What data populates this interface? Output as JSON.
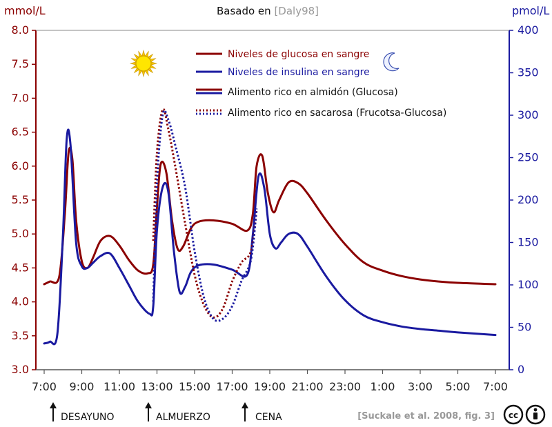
{
  "title": {
    "prefix": "Basado en ",
    "ref": "[Daly98]"
  },
  "credit": "[Suckale et al. 2008, fig. 3]",
  "chart_data": {
    "type": "line",
    "left_axis": {
      "label": "mmol/L",
      "ylim": [
        3.0,
        8.0
      ],
      "ticks": [
        "3.0",
        "3.5",
        "4.0",
        "4.5",
        "5.0",
        "5.5",
        "6.0",
        "6.5",
        "7.0",
        "7.5",
        "8.0"
      ],
      "color": "#8b0000"
    },
    "right_axis": {
      "label": "pmol/L",
      "ylim": [
        0,
        400
      ],
      "ticks": [
        "0",
        "50",
        "100",
        "150",
        "200",
        "250",
        "300",
        "350",
        "400"
      ],
      "color": "#1a1aa0"
    },
    "x_axis": {
      "ticks": [
        "7:00",
        "9:00",
        "11:00",
        "13:00",
        "15:00",
        "17:00",
        "19:00",
        "21:00",
        "23:00",
        "1:00",
        "3:00",
        "5:00",
        "7:00"
      ],
      "range_hours": [
        7,
        31.5
      ]
    },
    "legend": [
      {
        "label": "Niveles de glucosa en sangre",
        "style": "solid-red",
        "color": "#8b0000"
      },
      {
        "label": "Niveles de insulina en sangre",
        "style": "solid-blue",
        "color": "#1a1aa0"
      },
      {
        "label": "Alimento rico en almidón (Glucosa)",
        "style": "solid-pair"
      },
      {
        "label": "Alimento rico en sacarosa (Frucotsa-Glucosa)",
        "style": "dotted-pair"
      }
    ],
    "legend_placement": "top-center",
    "meals": [
      {
        "label": "DESAYUNO",
        "hour": 7.8
      },
      {
        "label": "ALMUERZO",
        "hour": 12.8
      },
      {
        "label": "CENA",
        "hour": 17.8
      }
    ],
    "series": [
      {
        "name": "Niveles de glucosa en sangre",
        "kind": "starch",
        "axis": "left",
        "color": "#8b0000",
        "dash": false,
        "x": [
          7.0,
          7.3,
          7.8,
          8.1,
          8.3,
          8.5,
          8.7,
          9.0,
          9.3,
          9.6,
          10.0,
          10.5,
          11.0,
          11.5,
          12.0,
          12.5,
          12.8,
          13.0,
          13.2,
          13.5,
          13.8,
          14.1,
          14.4,
          14.8,
          15.2,
          16.0,
          17.0,
          17.8,
          18.1,
          18.3,
          18.6,
          18.9,
          19.2,
          19.5,
          20.0,
          20.5,
          21.0,
          22.0,
          23.0,
          24.0,
          25.0,
          26.0,
          27.0,
          28.0,
          29.0,
          31.0
        ],
        "y": [
          4.26,
          4.3,
          4.37,
          5.3,
          6.2,
          6.1,
          5.2,
          4.6,
          4.5,
          4.65,
          4.9,
          4.97,
          4.83,
          4.62,
          4.46,
          4.42,
          4.55,
          5.4,
          6.03,
          5.9,
          5.2,
          4.78,
          4.82,
          5.08,
          5.18,
          5.2,
          5.15,
          5.05,
          5.3,
          6.0,
          6.15,
          5.6,
          5.32,
          5.5,
          5.76,
          5.75,
          5.6,
          5.2,
          4.85,
          4.58,
          4.46,
          4.38,
          4.33,
          4.3,
          4.28,
          4.26
        ]
      },
      {
        "name": "Niveles de insulina en sangre",
        "kind": "starch",
        "axis": "right",
        "color": "#1a1aa0",
        "dash": false,
        "x": [
          7.0,
          7.3,
          7.7,
          8.0,
          8.2,
          8.4,
          8.7,
          9.0,
          9.3,
          9.6,
          10.0,
          10.5,
          11.0,
          11.5,
          12.0,
          12.6,
          12.8,
          13.0,
          13.3,
          13.6,
          13.9,
          14.2,
          14.5,
          14.8,
          15.2,
          16.0,
          17.0,
          17.8,
          18.1,
          18.4,
          18.7,
          19.0,
          19.3,
          19.6,
          20.0,
          20.5,
          21.0,
          22.0,
          23.0,
          24.0,
          25.0,
          26.0,
          27.0,
          28.0,
          29.0,
          31.0
        ],
        "y": [
          31,
          33,
          42,
          160,
          272,
          265,
          150,
          122,
          120,
          126,
          134,
          137,
          120,
          100,
          80,
          66,
          75,
          165,
          215,
          210,
          140,
          92,
          98,
          115,
          123,
          124,
          118,
          112,
          160,
          228,
          215,
          160,
          143,
          150,
          160,
          160,
          145,
          110,
          82,
          64,
          56,
          51,
          48,
          46,
          44,
          41
        ]
      },
      {
        "name": "Glucosa (sacarosa)",
        "kind": "sucrose",
        "axis": "left",
        "color": "#8b0000",
        "dash": true,
        "x": [
          12.8,
          13.0,
          13.3,
          13.6,
          14.0,
          14.5,
          15.0,
          15.5,
          16.0,
          16.5,
          17.0,
          17.5,
          18.0,
          18.3
        ],
        "y": [
          4.9,
          6.2,
          6.83,
          6.55,
          5.95,
          5.15,
          4.4,
          3.95,
          3.77,
          3.9,
          4.3,
          4.58,
          4.75,
          5.35
        ]
      },
      {
        "name": "Insulina (sacarosa)",
        "kind": "sucrose",
        "axis": "right",
        "color": "#1a1aa0",
        "dash": true,
        "x": [
          12.8,
          13.0,
          13.3,
          13.6,
          14.0,
          14.5,
          15.0,
          15.5,
          16.0,
          16.5,
          17.0,
          17.5,
          18.0,
          18.3
        ],
        "y": [
          80,
          220,
          300,
          295,
          262,
          215,
          140,
          85,
          60,
          60,
          75,
          105,
          130,
          190
        ]
      }
    ]
  }
}
